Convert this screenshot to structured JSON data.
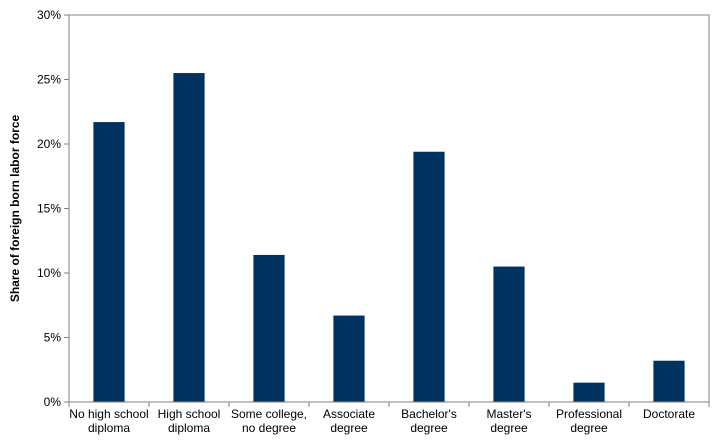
{
  "chart_data": {
    "type": "bar",
    "title": "",
    "xlabel": "",
    "ylabel": "Share of foreign born labor force",
    "ylim": [
      0,
      30
    ],
    "yticks": [
      0,
      5,
      10,
      15,
      20,
      25,
      30
    ],
    "ytick_labels": [
      "0%",
      "5%",
      "10%",
      "15%",
      "20%",
      "25%",
      "30%"
    ],
    "grid": false,
    "legend": "none",
    "bar_color": "#003361",
    "categories": [
      [
        "No high school",
        "diploma"
      ],
      [
        "High school",
        "diploma"
      ],
      [
        "Some college,",
        "no degree"
      ],
      [
        "Associate",
        "degree"
      ],
      [
        "Bachelor's",
        "degree"
      ],
      [
        "Master's",
        "degree"
      ],
      [
        "Professional",
        "degree"
      ],
      [
        "Doctorate"
      ]
    ],
    "values": [
      21.7,
      25.5,
      11.4,
      6.7,
      19.4,
      10.5,
      1.5,
      3.2
    ]
  }
}
